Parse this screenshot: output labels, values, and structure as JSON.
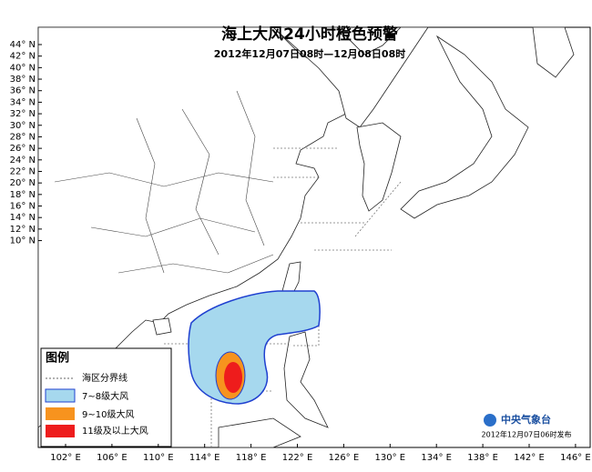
{
  "header": {
    "title": "海上大风24小时橙色预警",
    "subtitle": "2012年12月07日08时—12月08日08时"
  },
  "lat_labels": [
    "44° N",
    "42° N",
    "40° N",
    "38° N",
    "36° N",
    "34° N",
    "32° N",
    "30° N",
    "28° N",
    "26° N",
    "24° N",
    "22° N",
    "20° N",
    "18° N",
    "16° N",
    "14° N",
    "12° N",
    "10° N"
  ],
  "lon_labels": [
    "102° E",
    "106° E",
    "110° E",
    "114° E",
    "118° E",
    "122° E",
    "126° E",
    "130° E",
    "134° E",
    "138° E",
    "142° E",
    "146° E"
  ],
  "legend": {
    "title": "图例",
    "items": [
      "海区分界线",
      "7~8级大风",
      "9~10级大风",
      "11级及以上大风"
    ]
  },
  "footer": {
    "agency": "中央气象台",
    "issued": "2012年12月07日06时发布"
  }
}
